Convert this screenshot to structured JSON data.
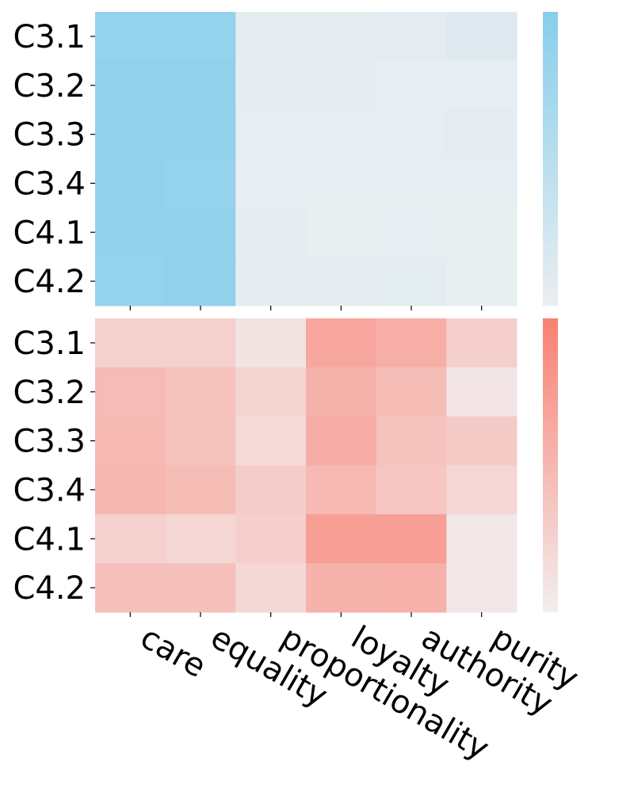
{
  "colors": {
    "top_high": "#87ceeb",
    "top_low": "#eaeef1",
    "bottom_high": "#fa8072",
    "bottom_low": "#f2eeef"
  },
  "chart_data": [
    {
      "type": "heatmap",
      "title": "",
      "rows": [
        "C3.1",
        "C3.2",
        "C3.3",
        "C3.4",
        "C4.1",
        "C4.2"
      ],
      "columns": [
        "care",
        "equality",
        "proportionality",
        "loyalty",
        "authority",
        "purity"
      ],
      "values": [
        [
          0.86,
          0.86,
          0.04,
          0.04,
          0.06,
          0.12
        ],
        [
          0.9,
          0.9,
          0.04,
          0.04,
          0.02,
          0.02
        ],
        [
          0.9,
          0.9,
          0.03,
          0.03,
          0.03,
          0.06
        ],
        [
          0.9,
          0.86,
          0.02,
          0.02,
          0.02,
          0.02
        ],
        [
          0.9,
          0.9,
          0.04,
          0.01,
          0.02,
          0.01
        ],
        [
          0.86,
          0.9,
          0.04,
          0.04,
          0.07,
          0.01
        ]
      ],
      "colorbar": true,
      "colormap": "light gray to sky blue"
    },
    {
      "type": "heatmap",
      "title": "",
      "rows": [
        "C3.1",
        "C3.2",
        "C3.3",
        "C3.4",
        "C4.1",
        "C4.2"
      ],
      "columns": [
        "care",
        "equality",
        "proportionality",
        "loyalty",
        "authority",
        "purity"
      ],
      "values": [
        [
          0.26,
          0.26,
          0.1,
          0.65,
          0.58,
          0.28
        ],
        [
          0.46,
          0.4,
          0.24,
          0.54,
          0.45,
          0.08
        ],
        [
          0.48,
          0.4,
          0.18,
          0.59,
          0.4,
          0.32
        ],
        [
          0.5,
          0.45,
          0.3,
          0.48,
          0.36,
          0.22
        ],
        [
          0.26,
          0.22,
          0.28,
          0.72,
          0.72,
          0.06
        ],
        [
          0.42,
          0.42,
          0.2,
          0.54,
          0.55,
          0.06
        ]
      ],
      "colorbar": true,
      "colormap": "light gray to salmon"
    }
  ]
}
